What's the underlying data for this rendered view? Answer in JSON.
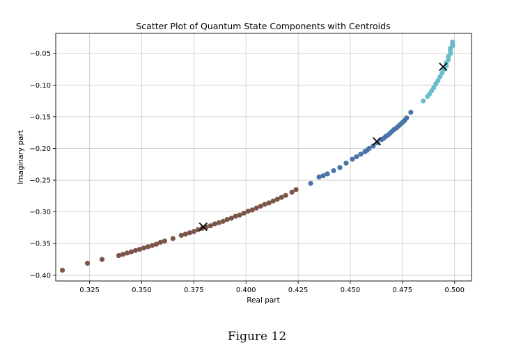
{
  "caption": "Figure 12",
  "colors": {
    "cluster_brown": "#7a5548",
    "cluster_blue": "#4a74a8",
    "cluster_cyan": "#6bbccc",
    "centroid": "#000000",
    "grid": "#c8c8c8",
    "axes": "#000000"
  },
  "chart_data": {
    "type": "scatter",
    "title": "Scatter Plot of Quantum State Components with Centroids",
    "xlabel": "Real part",
    "ylabel": "Imaginary part",
    "xlim": [
      0.3088,
      0.5081
    ],
    "ylim": [
      -0.409,
      -0.0185
    ],
    "grid": true,
    "x_ticks": [
      0.325,
      0.35,
      0.375,
      0.4,
      0.425,
      0.45,
      0.475,
      0.5
    ],
    "y_ticks": [
      -0.4,
      -0.35,
      -0.3,
      -0.25,
      -0.2,
      -0.15,
      -0.1,
      -0.05
    ],
    "x_tick_labels": [
      "0.325",
      "0.350",
      "0.375",
      "0.400",
      "0.425",
      "0.450",
      "0.475",
      "0.500"
    ],
    "y_tick_labels": [
      "−0.40",
      "−0.35",
      "−0.30",
      "−0.25",
      "−0.20",
      "−0.15",
      "−0.10",
      "−0.05"
    ],
    "series": [
      {
        "color": "#7a5548",
        "x": [
          0.312,
          0.324,
          0.331,
          0.339,
          0.341,
          0.343,
          0.345,
          0.347,
          0.349,
          0.351,
          0.353,
          0.355,
          0.357,
          0.359,
          0.361,
          0.365,
          0.369,
          0.371,
          0.373,
          0.375,
          0.377,
          0.379,
          0.381,
          0.383,
          0.385,
          0.387,
          0.389,
          0.391,
          0.393,
          0.395,
          0.397,
          0.399,
          0.401,
          0.403,
          0.405,
          0.407,
          0.409,
          0.411,
          0.413,
          0.415,
          0.417,
          0.419,
          0.422,
          0.424
        ],
        "y": [
          -0.392,
          -0.381,
          -0.375,
          -0.369,
          -0.367,
          -0.365,
          -0.363,
          -0.361,
          -0.359,
          -0.357,
          -0.355,
          -0.353,
          -0.351,
          -0.348,
          -0.346,
          -0.342,
          -0.337,
          -0.335,
          -0.333,
          -0.331,
          -0.328,
          -0.326,
          -0.324,
          -0.322,
          -0.319,
          -0.317,
          -0.315,
          -0.312,
          -0.31,
          -0.307,
          -0.305,
          -0.302,
          -0.299,
          -0.297,
          -0.294,
          -0.291,
          -0.288,
          -0.286,
          -0.283,
          -0.28,
          -0.277,
          -0.274,
          -0.269,
          -0.265
        ]
      },
      {
        "color": "#4a74a8",
        "x": [
          0.431,
          0.435,
          0.437,
          0.439,
          0.442,
          0.445,
          0.448,
          0.451,
          0.453,
          0.455,
          0.457,
          0.458,
          0.459,
          0.461,
          0.463,
          0.465,
          0.466,
          0.467,
          0.468,
          0.469,
          0.47,
          0.471,
          0.472,
          0.473,
          0.474,
          0.475,
          0.476,
          0.477,
          0.479
        ],
        "y": [
          -0.255,
          -0.245,
          -0.243,
          -0.24,
          -0.235,
          -0.23,
          -0.223,
          -0.217,
          -0.213,
          -0.209,
          -0.205,
          -0.203,
          -0.2,
          -0.196,
          -0.191,
          -0.186,
          -0.184,
          -0.181,
          -0.179,
          -0.176,
          -0.173,
          -0.17,
          -0.168,
          -0.165,
          -0.162,
          -0.159,
          -0.156,
          -0.152,
          -0.143
        ]
      },
      {
        "color": "#6bbccc",
        "x": [
          0.485,
          0.487,
          0.488,
          0.489,
          0.49,
          0.491,
          0.492,
          0.493,
          0.494,
          0.495,
          0.496,
          0.496,
          0.497,
          0.497,
          0.498,
          0.498,
          0.498,
          0.499,
          0.499,
          0.499
        ],
        "y": [
          -0.125,
          -0.118,
          -0.114,
          -0.109,
          -0.104,
          -0.098,
          -0.093,
          -0.087,
          -0.081,
          -0.075,
          -0.07,
          -0.065,
          -0.06,
          -0.055,
          -0.05,
          -0.046,
          -0.042,
          -0.038,
          -0.035,
          -0.032
        ]
      }
    ],
    "centroids": {
      "x": [
        0.3795,
        0.4627,
        0.4945
      ],
      "y": [
        -0.3235,
        -0.1888,
        -0.0712
      ]
    }
  }
}
